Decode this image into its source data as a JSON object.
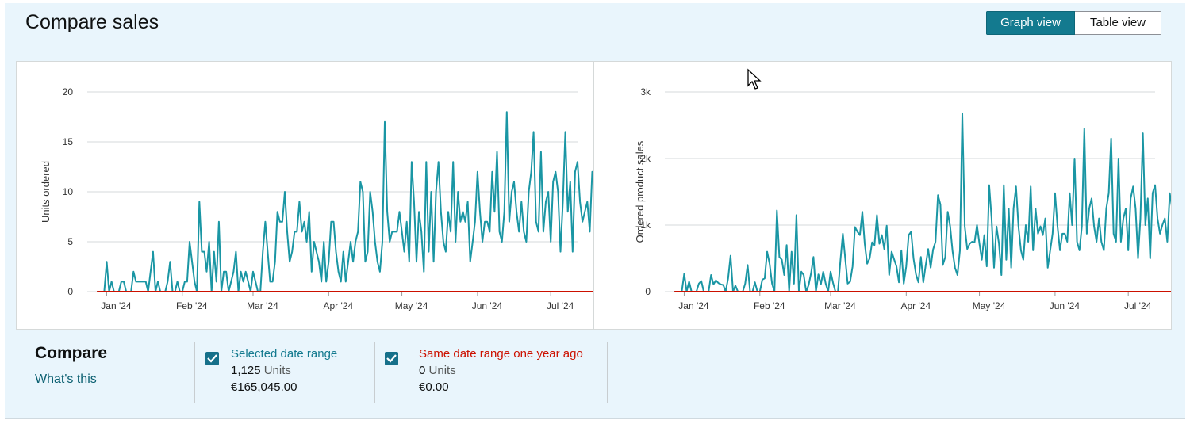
{
  "header": {
    "title": "Compare sales",
    "graph_view_label": "Graph view",
    "table_view_label": "Table view"
  },
  "colors": {
    "selected_range": "#1a96a4",
    "year_ago_range": "#cc1100",
    "panel_background": "#e9f5fc",
    "active_toggle": "#137a8f"
  },
  "chart_data": [
    {
      "type": "line",
      "ylabel": "Units ordered",
      "ylim": [
        0,
        20
      ],
      "y_ticks": [
        "0",
        "5",
        "10",
        "15",
        "20"
      ],
      "x_range": [
        "2023-12-26",
        "2024-07-12"
      ],
      "x_ticks": [
        {
          "label": "Jan '24",
          "date": "2024-01-01"
        },
        {
          "label": "Feb '24",
          "date": "2024-02-01"
        },
        {
          "label": "Mar '24",
          "date": "2024-03-01"
        },
        {
          "label": "Apr '24",
          "date": "2024-04-01"
        },
        {
          "label": "May '24",
          "date": "2024-05-01"
        },
        {
          "label": "Jun '24",
          "date": "2024-06-01"
        },
        {
          "label": "Jul '24",
          "date": "2024-07-01"
        }
      ],
      "grid": true,
      "series": [
        {
          "name": "Selected date range",
          "x_start": "2023-12-28",
          "values": [
            0,
            0,
            0,
            0,
            3,
            0,
            1,
            0,
            0,
            0,
            1,
            1,
            0,
            0,
            0,
            2,
            1,
            1,
            1,
            1,
            1,
            0,
            2,
            4,
            0,
            1,
            0,
            0,
            0,
            1,
            3,
            0,
            0,
            1,
            0,
            0,
            1,
            1,
            5,
            3,
            1,
            0,
            9,
            4,
            4,
            2,
            5,
            0,
            4,
            1,
            7,
            0,
            2,
            2,
            0,
            1,
            2,
            4,
            0,
            2,
            1,
            2,
            1,
            0,
            2,
            1,
            0,
            0,
            4,
            7,
            4,
            1,
            1,
            3,
            8,
            7,
            7,
            10,
            6,
            3,
            4,
            6,
            6,
            9,
            6,
            7,
            5,
            8,
            2,
            5,
            4,
            3,
            1,
            5,
            1,
            3,
            7,
            7,
            4,
            2,
            1,
            4,
            1,
            3,
            5,
            3,
            5,
            6,
            11,
            10,
            3,
            4,
            10,
            8,
            5,
            3,
            2,
            5,
            17,
            8,
            5,
            6,
            6,
            6,
            8,
            6,
            4,
            7,
            3,
            13,
            9,
            3,
            8,
            6,
            2,
            13,
            4,
            10,
            3,
            10,
            13,
            8,
            5,
            4,
            8,
            6,
            13,
            5,
            10,
            7,
            8,
            7,
            9,
            3,
            5,
            7,
            12,
            8,
            5,
            7,
            7,
            6,
            12,
            8,
            14,
            6,
            5,
            8,
            18,
            7,
            10,
            11,
            8,
            6,
            9,
            6,
            5,
            10,
            12,
            16,
            7,
            6,
            14,
            6,
            9,
            10,
            5,
            11,
            12,
            10,
            4,
            9,
            16,
            8,
            11,
            4,
            12,
            13,
            9,
            7,
            8,
            9,
            6,
            12,
            10,
            3,
            7,
            5,
            10,
            13,
            11,
            11,
            6,
            7,
            16,
            10,
            8,
            14,
            13,
            10,
            9,
            6,
            12,
            7,
            5,
            14,
            13,
            11,
            8,
            5,
            10,
            9,
            7,
            8,
            6,
            10,
            12,
            13,
            9,
            7,
            8,
            6,
            13,
            7
          ]
        },
        {
          "name": "Same date range one year ago",
          "values_constant": 0
        }
      ]
    },
    {
      "type": "line",
      "ylabel": "Ordered product sales",
      "ylim": [
        0,
        3000
      ],
      "y_ticks": [
        "0",
        "1k",
        "2k",
        "3k"
      ],
      "x_range": [
        "2023-12-26",
        "2024-07-12"
      ],
      "x_ticks": [
        {
          "label": "Jan '24",
          "date": "2024-01-01"
        },
        {
          "label": "Feb '24",
          "date": "2024-02-01"
        },
        {
          "label": "Mar '24",
          "date": "2024-03-01"
        },
        {
          "label": "Apr '24",
          "date": "2024-04-01"
        },
        {
          "label": "May '24",
          "date": "2024-05-01"
        },
        {
          "label": "Jun '24",
          "date": "2024-06-01"
        },
        {
          "label": "Jul '24",
          "date": "2024-07-01"
        }
      ],
      "grid": true,
      "series": [
        {
          "name": "Selected date range",
          "x_start": "2023-12-28",
          "values": [
            0,
            0,
            0,
            0,
            270,
            0,
            150,
            0,
            0,
            0,
            120,
            160,
            0,
            0,
            0,
            250,
            110,
            170,
            130,
            110,
            100,
            0,
            200,
            540,
            0,
            90,
            0,
            0,
            0,
            120,
            400,
            0,
            0,
            140,
            0,
            0,
            180,
            200,
            600,
            420,
            120,
            0,
            1220,
            520,
            480,
            250,
            700,
            0,
            600,
            120,
            1150,
            0,
            300,
            250,
            0,
            100,
            280,
            520,
            0,
            260,
            110,
            300,
            120,
            0,
            300,
            130,
            0,
            0,
            460,
            870,
            500,
            120,
            150,
            380,
            970,
            900,
            850,
            1200,
            720,
            420,
            500,
            740,
            700,
            1150,
            720,
            850,
            640,
            990,
            250,
            600,
            490,
            380,
            140,
            620,
            120,
            380,
            850,
            900,
            500,
            260,
            140,
            520,
            140,
            400,
            640,
            360,
            630,
            750,
            1450,
            1310,
            400,
            520,
            1200,
            980,
            610,
            360,
            250,
            620,
            2680,
            980,
            640,
            720,
            750,
            740,
            1000,
            720,
            480,
            850,
            380,
            1600,
            1100,
            360,
            980,
            720,
            250,
            1600,
            480,
            1250,
            360,
            1250,
            1580,
            980,
            620,
            480,
            1000,
            750,
            1580,
            620,
            1250,
            870,
            980,
            850,
            1100,
            360,
            620,
            870,
            1480,
            980,
            620,
            870,
            870,
            750,
            1480,
            1000,
            2000,
            750,
            620,
            980,
            2450,
            870,
            1250,
            1400,
            980,
            750,
            1100,
            750,
            620,
            1250,
            1480,
            2300,
            870,
            750,
            2000,
            750,
            1100,
            1250,
            620,
            1400,
            1580,
            1250,
            500,
            1100,
            2380,
            1000,
            1400,
            500,
            1480,
            1600,
            1100,
            870,
            1000,
            1100,
            750,
            1480,
            1250,
            380,
            870,
            620,
            1250,
            1580,
            1400,
            1400,
            750,
            870,
            2100,
            1250,
            1000,
            1750,
            1600,
            1250,
            1100,
            750,
            1480,
            870,
            620,
            1750,
            1600,
            1400,
            1000,
            620,
            1250,
            1100,
            870,
            1000,
            750,
            1250,
            1480,
            1600,
            1100,
            870,
            1000,
            750,
            1600,
            870
          ]
        },
        {
          "name": "Same date range one year ago",
          "values_constant": 0
        }
      ]
    }
  ],
  "compare": {
    "heading": "Compare",
    "whats_this": "What's this",
    "selected": {
      "label": "Selected date range",
      "units_value": "1,125",
      "units_word": "Units",
      "amount": "€165,045.00"
    },
    "year_ago": {
      "label": "Same date range one year ago",
      "units_value": "0",
      "units_word": "Units",
      "amount": "€0.00"
    }
  }
}
